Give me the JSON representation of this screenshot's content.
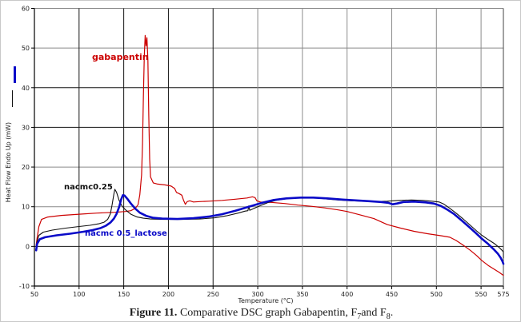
{
  "figure": {
    "caption": {
      "prefix": "Figure 11.",
      "text1": " Comparative DSC graph Gabapentin, F",
      "sub1": "7",
      "text2": "and F",
      "sub2": "8",
      "text3": "."
    }
  },
  "chart_data": {
    "type": "line",
    "title": "",
    "xlabel": "Temperature (°C)",
    "ylabel": "Heat Flow Endo Up (mW)",
    "xlim": [
      50,
      575
    ],
    "ylim": [
      -10,
      60
    ],
    "xticks": [
      50,
      100,
      150,
      200,
      250,
      300,
      350,
      400,
      450,
      500,
      550,
      575
    ],
    "yticks": [
      -10,
      0,
      10,
      20,
      30,
      40,
      50,
      60
    ],
    "grid": {
      "on": true,
      "gray_color": "#8a8a8a",
      "dark_color": "#141414",
      "dark_xticks": [
        100,
        150,
        200,
        250
      ],
      "dark_yticks": [
        40,
        30,
        0
      ]
    },
    "legend_position": "inline-labels",
    "series": [
      {
        "name": "gabapentin",
        "color": "#cc0000",
        "line_width": 1.2,
        "points": [
          [
            52,
            0.3
          ],
          [
            53,
            2
          ],
          [
            55,
            5
          ],
          [
            58,
            6.8
          ],
          [
            65,
            7.4
          ],
          [
            80,
            7.8
          ],
          [
            100,
            8.1
          ],
          [
            120,
            8.4
          ],
          [
            140,
            8.6
          ],
          [
            152,
            8.8
          ],
          [
            158,
            9.0
          ],
          [
            163,
            9.6
          ],
          [
            166,
            10.5
          ],
          [
            168,
            13
          ],
          [
            170,
            18
          ],
          [
            171,
            26
          ],
          [
            172,
            38
          ],
          [
            173,
            48
          ],
          [
            174,
            53.2
          ],
          [
            175,
            50.5
          ],
          [
            176,
            52.6
          ],
          [
            177,
            47
          ],
          [
            178,
            33
          ],
          [
            179,
            22
          ],
          [
            180,
            17.5
          ],
          [
            183,
            16
          ],
          [
            188,
            15.7
          ],
          [
            196,
            15.5
          ],
          [
            203,
            15.2
          ],
          [
            207,
            14.6
          ],
          [
            209,
            13.6
          ],
          [
            212,
            13.3
          ],
          [
            215,
            12.9
          ],
          [
            217,
            11.6
          ],
          [
            219,
            10.6
          ],
          [
            221,
            11.3
          ],
          [
            224,
            11.5
          ],
          [
            228,
            11.2
          ],
          [
            235,
            11.3
          ],
          [
            245,
            11.4
          ],
          [
            260,
            11.6
          ],
          [
            275,
            11.9
          ],
          [
            288,
            12.2
          ],
          [
            294,
            12.5
          ],
          [
            297,
            12.3
          ],
          [
            299,
            11.5
          ],
          [
            303,
            11.2
          ],
          [
            315,
            11.1
          ],
          [
            330,
            10.8
          ],
          [
            345,
            10.4
          ],
          [
            360,
            10.1
          ],
          [
            375,
            9.7
          ],
          [
            390,
            9.2
          ],
          [
            400,
            8.8
          ],
          [
            415,
            7.9
          ],
          [
            430,
            7.0
          ],
          [
            445,
            5.5
          ],
          [
            460,
            4.6
          ],
          [
            475,
            3.8
          ],
          [
            490,
            3.2
          ],
          [
            505,
            2.7
          ],
          [
            515,
            2.3
          ],
          [
            522,
            1.5
          ],
          [
            530,
            0.3
          ],
          [
            538,
            -1.0
          ],
          [
            545,
            -2.3
          ],
          [
            551,
            -3.6
          ],
          [
            558,
            -4.8
          ],
          [
            565,
            -5.8
          ],
          [
            570,
            -6.5
          ],
          [
            575,
            -7.3
          ]
        ]
      },
      {
        "name": "nacmc0.25",
        "color": "#101010",
        "line_width": 1.1,
        "points": [
          [
            52,
            -0.5
          ],
          [
            53,
            1.2
          ],
          [
            55,
            2.8
          ],
          [
            60,
            3.6
          ],
          [
            70,
            4.1
          ],
          [
            85,
            4.6
          ],
          [
            100,
            5.0
          ],
          [
            112,
            5.3
          ],
          [
            122,
            5.7
          ],
          [
            128,
            6.1
          ],
          [
            132,
            6.8
          ],
          [
            135,
            8.2
          ],
          [
            137,
            10.5
          ],
          [
            139,
            13.2
          ],
          [
            140,
            14.4
          ],
          [
            142,
            13.6
          ],
          [
            145,
            11.5
          ],
          [
            148,
            10.2
          ],
          [
            152,
            9.2
          ],
          [
            158,
            8.1
          ],
          [
            165,
            7.4
          ],
          [
            172,
            7.1
          ],
          [
            180,
            6.9
          ],
          [
            195,
            6.8
          ],
          [
            215,
            6.8
          ],
          [
            235,
            6.9
          ],
          [
            252,
            7.2
          ],
          [
            265,
            7.7
          ],
          [
            278,
            8.4
          ],
          [
            286,
            8.9
          ],
          [
            289,
            9.0
          ],
          [
            290,
            10.2
          ],
          [
            291,
            9.1
          ],
          [
            296,
            9.6
          ],
          [
            302,
            10.2
          ],
          [
            312,
            11.1
          ],
          [
            322,
            11.7
          ],
          [
            335,
            12.1
          ],
          [
            350,
            12.3
          ],
          [
            362,
            12.3
          ],
          [
            375,
            12.0
          ],
          [
            390,
            11.7
          ],
          [
            405,
            11.5
          ],
          [
            420,
            11.4
          ],
          [
            432,
            11.3
          ],
          [
            445,
            11.4
          ],
          [
            458,
            11.6
          ],
          [
            472,
            11.7
          ],
          [
            485,
            11.6
          ],
          [
            495,
            11.4
          ],
          [
            503,
            11.2
          ],
          [
            508,
            10.7
          ],
          [
            515,
            9.6
          ],
          [
            522,
            8.4
          ],
          [
            530,
            6.9
          ],
          [
            538,
            5.3
          ],
          [
            545,
            3.9
          ],
          [
            551,
            2.8
          ],
          [
            558,
            1.7
          ],
          [
            565,
            0.7
          ],
          [
            570,
            -0.2
          ],
          [
            573,
            -0.9
          ],
          [
            575,
            -1.4
          ],
          [
            575,
            -2.9
          ]
        ]
      },
      {
        "name": "nacmc 0.5_lactose",
        "color": "#0a0ac8",
        "line_width": 2.6,
        "points": [
          [
            52,
            -1.0
          ],
          [
            53,
            0.6
          ],
          [
            56,
            1.8
          ],
          [
            62,
            2.3
          ],
          [
            75,
            2.8
          ],
          [
            90,
            3.2
          ],
          [
            105,
            3.7
          ],
          [
            115,
            4.1
          ],
          [
            124,
            4.6
          ],
          [
            130,
            5.2
          ],
          [
            135,
            6.0
          ],
          [
            139,
            7.0
          ],
          [
            142,
            8.2
          ],
          [
            145,
            10.0
          ],
          [
            147,
            11.8
          ],
          [
            149,
            12.9
          ],
          [
            151,
            12.8
          ],
          [
            154,
            12.0
          ],
          [
            158,
            10.8
          ],
          [
            163,
            9.5
          ],
          [
            168,
            8.5
          ],
          [
            175,
            7.7
          ],
          [
            183,
            7.2
          ],
          [
            193,
            7.0
          ],
          [
            210,
            6.9
          ],
          [
            228,
            7.1
          ],
          [
            245,
            7.5
          ],
          [
            260,
            8.1
          ],
          [
            275,
            9.0
          ],
          [
            290,
            10.0
          ],
          [
            305,
            11.0
          ],
          [
            318,
            11.7
          ],
          [
            332,
            12.1
          ],
          [
            348,
            12.3
          ],
          [
            362,
            12.3
          ],
          [
            378,
            12.1
          ],
          [
            395,
            11.8
          ],
          [
            410,
            11.6
          ],
          [
            425,
            11.4
          ],
          [
            438,
            11.2
          ],
          [
            446,
            11.0
          ],
          [
            451,
            10.6
          ],
          [
            456,
            10.8
          ],
          [
            463,
            11.2
          ],
          [
            475,
            11.3
          ],
          [
            488,
            11.1
          ],
          [
            497,
            10.8
          ],
          [
            505,
            10.2
          ],
          [
            512,
            9.3
          ],
          [
            520,
            8.1
          ],
          [
            528,
            6.6
          ],
          [
            536,
            5.0
          ],
          [
            544,
            3.4
          ],
          [
            551,
            1.9
          ],
          [
            558,
            0.6
          ],
          [
            564,
            -0.7
          ],
          [
            569,
            -1.9
          ],
          [
            572,
            -2.9
          ],
          [
            574,
            -3.8
          ],
          [
            575,
            -4.4
          ]
        ]
      }
    ]
  }
}
